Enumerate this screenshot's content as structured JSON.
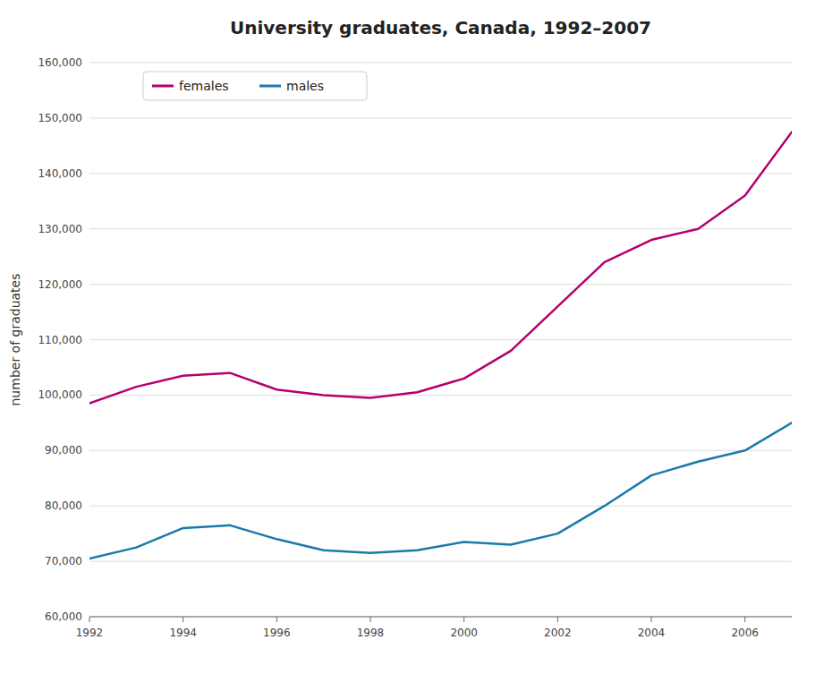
{
  "chart_data": {
    "type": "line",
    "title": "University graduates, Canada, 1992–2007",
    "y_label": "number of graduates",
    "x": [
      1992,
      1993,
      1994,
      1995,
      1996,
      1997,
      1998,
      1999,
      2000,
      2001,
      2002,
      2003,
      2004,
      2005,
      2006,
      2007
    ],
    "series": [
      {
        "name": "females",
        "color": "#b5006e",
        "values": [
          98500,
          101500,
          103500,
          104000,
          101000,
          100000,
          99500,
          100500,
          103000,
          108000,
          116000,
          124000,
          128000,
          130000,
          136000,
          147500
        ]
      },
      {
        "name": "males",
        "color": "#1a7aaa",
        "values": [
          70500,
          72500,
          76000,
          76500,
          74000,
          72000,
          71500,
          72000,
          73500,
          73000,
          75000,
          80000,
          85500,
          88000,
          90000,
          95000
        ]
      }
    ],
    "xlim": [
      1992,
      2007
    ],
    "xticks": [
      1992,
      1994,
      1996,
      1998,
      2000,
      2002,
      2004,
      2006
    ],
    "ylim": [
      60000,
      160000
    ],
    "yticks": [
      {
        "value": 60000,
        "label": "60,000"
      },
      {
        "value": 70000,
        "label": "70,000"
      },
      {
        "value": 80000,
        "label": "80,000"
      },
      {
        "value": 90000,
        "label": "90,000"
      },
      {
        "value": 100000,
        "label": "100,000"
      },
      {
        "value": 110000,
        "label": "110,000"
      },
      {
        "value": 120000,
        "label": "120,000"
      },
      {
        "value": 130000,
        "label": "130,000"
      },
      {
        "value": 140000,
        "label": "140,000"
      },
      {
        "value": 150000,
        "label": "150,000"
      },
      {
        "value": 160000,
        "label": "160,000"
      }
    ],
    "grid": true,
    "legend": "top-left"
  }
}
